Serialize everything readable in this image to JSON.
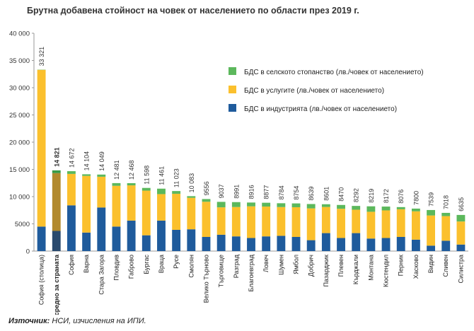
{
  "chart_data": {
    "type": "bar",
    "stacked": true,
    "title": "Брутна добавена стойност на човек от населението по области през 2019 г.",
    "ylim": [
      0,
      40000
    ],
    "y_ticks": [
      "0",
      "5000",
      "10 000",
      "15 000",
      "20 000",
      "25 000",
      "30 000",
      "35 000",
      "40 000"
    ],
    "grid": false,
    "legend_position": "right",
    "categories": [
      "София (столица)",
      "средно за страната",
      "София",
      "Варна",
      "Стара Загора",
      "Пловдив",
      "Габрово",
      "Бургас",
      "Враца",
      "Русе",
      "Смолян",
      "Велико Търново",
      "Търговище",
      "Разград",
      "Благоевград",
      "Ловеч",
      "Шумен",
      "Ямбол",
      "Добрич",
      "Пазарджик",
      "Плевен",
      "Кърджали",
      "Монтана",
      "Кюстендил",
      "Перник",
      "Хасково",
      "Видин",
      "Сливен",
      "Силистра"
    ],
    "totals": [
      33321,
      14821,
      14672,
      14104,
      14049,
      12481,
      12468,
      11598,
      11461,
      11023,
      10083,
      9556,
      9037,
      8991,
      8916,
      8877,
      8784,
      8754,
      8639,
      8601,
      8470,
      8292,
      8219,
      8172,
      8076,
      7800,
      7539,
      7018,
      6635
    ],
    "total_labels": [
      "33 321",
      "14 821",
      "14 672",
      "14 104",
      "14 049",
      "12 481",
      "12 468",
      "11 598",
      "11 461",
      "11 023",
      "10 083",
      "9556",
      "9037",
      "8991",
      "8916",
      "8877",
      "8784",
      "8754",
      "8639",
      "8601",
      "8470",
      "8292",
      "8219",
      "8172",
      "8076",
      "7800",
      "7539",
      "7018",
      "6635"
    ],
    "highlight_index": 1,
    "series": [
      {
        "name": "БДС в индустрията (лв./човек от населението)",
        "color": "#1f5b9c",
        "values": [
          4500,
          3700,
          8400,
          3400,
          8000,
          4500,
          5600,
          2900,
          5600,
          3900,
          4000,
          2600,
          3000,
          2700,
          2400,
          2700,
          2800,
          2600,
          2000,
          3300,
          2400,
          3300,
          2300,
          2400,
          2600,
          2100,
          1000,
          1900,
          1200
        ]
      },
      {
        "name": "БДС в услугите (лв./човек от населението)",
        "color": "#fbc02d",
        "values": [
          28778,
          10621,
          5772,
          10404,
          5649,
          7481,
          6468,
          8198,
          4861,
          6623,
          5783,
          6456,
          5037,
          5391,
          5816,
          5477,
          5284,
          5454,
          5839,
          4801,
          5370,
          4292,
          4919,
          5072,
          5076,
          5200,
          5539,
          4518,
          4235
        ]
      },
      {
        "name": "БДС в селското стопанство (лв./човек от населението)",
        "color": "#5cb85c",
        "values": [
          43,
          500,
          500,
          300,
          400,
          500,
          400,
          500,
          1000,
          500,
          300,
          500,
          1000,
          900,
          700,
          700,
          700,
          700,
          800,
          500,
          700,
          700,
          1000,
          700,
          400,
          500,
          1000,
          600,
          1200
        ]
      }
    ],
    "highlight_series_colors": [
      "#2a4a6e",
      "#b28a2e",
      "#3a9b47"
    ]
  },
  "source": {
    "label": "Източник:",
    "text": " НСИ, изчисления на ИПИ."
  }
}
